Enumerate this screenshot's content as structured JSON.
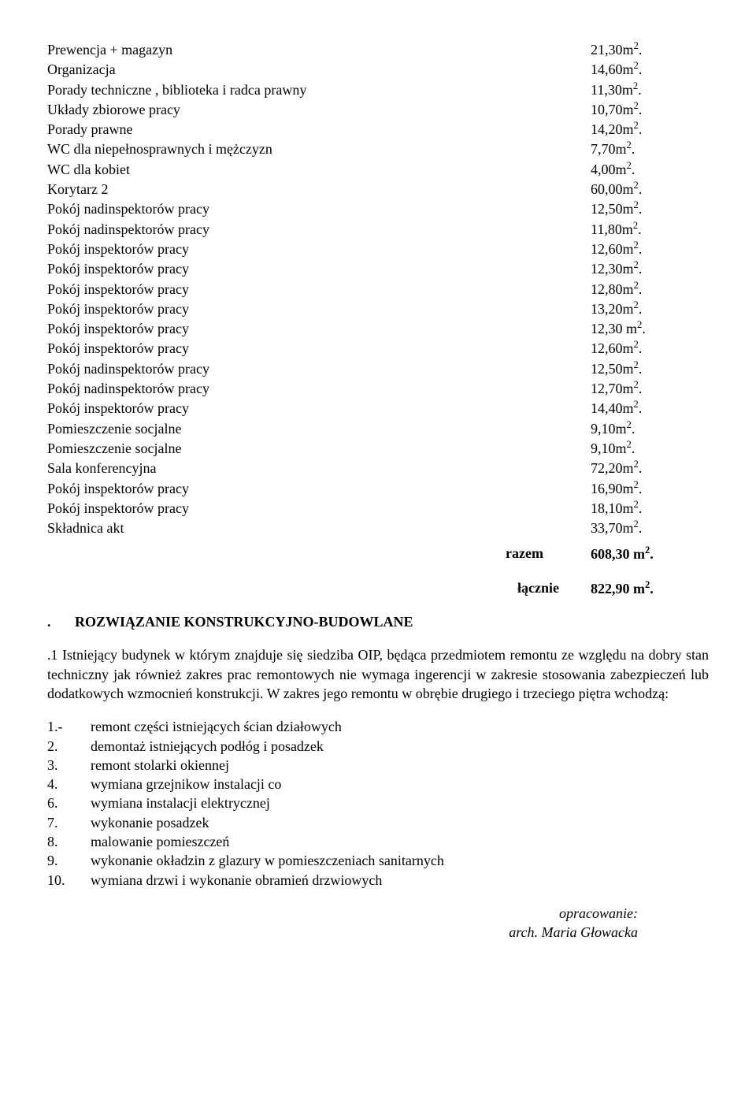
{
  "rooms": [
    {
      "label": "Prewencja + magazyn",
      "value": "21,30m²."
    },
    {
      "label": "Organizacja",
      "value": "14,60m²."
    },
    {
      "label": "Porady techniczne , biblioteka i radca  prawny",
      "value": "11,30m²."
    },
    {
      "label": "Układy zbiorowe pracy",
      "value": "10,70m²."
    },
    {
      "label": "Porady  prawne",
      "value": "14,20m²."
    },
    {
      "label": "WC dla niepełnosprawnych i mężczyzn",
      "value": "7,70m²."
    },
    {
      "label": "WC dla kobiet",
      "value": "4,00m²."
    },
    {
      "label": "Korytarz 2",
      "value": "60,00m²."
    },
    {
      "label": "Pokój  nadinspektorów  pracy",
      "value": "12,50m²."
    },
    {
      "label": "Pokój  nadinspektorów pracy",
      "value": "11,80m²."
    },
    {
      "label": "Pokój inspektorów pracy",
      "value": "12,60m²."
    },
    {
      "label": "Pokój inspektorów pracy",
      "value": "12,30m²."
    },
    {
      "label": "Pokój inspektorów pracy",
      "value": "12,80m²."
    },
    {
      "label": "Pokój inspektorów pracy",
      "value": "13,20m²."
    },
    {
      "label": "Pokój inspektorów pracy",
      "value": "12,30 m²."
    },
    {
      "label": "Pokój inspektorów pracy",
      "value": "12,60m²."
    },
    {
      "label": "Pokój  nadinspektorów pracy",
      "value": "12,50m²."
    },
    {
      "label": "Pokój  nadinspektorów pracy",
      "value": "12,70m²."
    },
    {
      "label": "Pokój inspektorów pracy",
      "value": "14,40m²."
    },
    {
      "label": "Pomieszczenie socjalne",
      "value": "9,10m²."
    },
    {
      "label": "Pomieszczenie socjalne",
      "value": "9,10m²."
    },
    {
      "label": "Sala konferencyjna",
      "value": "72,20m²."
    },
    {
      "label": "Pokój inspektorów pracy",
      "value": "16,90m²."
    },
    {
      "label": "Pokój inspektorów pracy",
      "value": "18,10m²."
    },
    {
      "label": "Składnica akt",
      "value": "33,70m²."
    }
  ],
  "razem": {
    "label": "razem",
    "value": "608,30 m²."
  },
  "lacznie": {
    "label": "łącznie",
    "value": "822,90 m²."
  },
  "section": {
    "num": ".",
    "title": "ROZWIĄZANIE KONSTRUKCYJNO-BUDOWLANE"
  },
  "paragraph": ".1     Istniejący budynek w którym znajduje się siedziba OIP, będąca przedmiotem remontu ze względu na dobry stan techniczny jak również zakres prac remontowych nie wymaga ingerencji w zakresie stosowania zabezpieczeń  lub dodatkowych wzmocnień konstrukcji. W zakres jego remontu w obrębie drugiego i trzeciego piętra wchodzą:",
  "numlist": [
    {
      "num": "1.-",
      "text": "remont  części istniejących ścian działowych"
    },
    {
      "num": "2.",
      "text": "demontaż istniejących podłóg i posadzek"
    },
    {
      "num": "3.",
      "text": "remont stolarki okiennej"
    },
    {
      "num": "4.",
      "text": "wymiana grzejnikow instalacji co"
    },
    {
      "num": "6.",
      "text": "wymiana  instalacji elektrycznej"
    },
    {
      "num": "7.",
      "text": "wykonanie posadzek"
    },
    {
      "num": "8.",
      "text": "malowanie pomieszczeń"
    },
    {
      "num": "9.",
      "text": "wykonanie okładzin z glazury w pomieszczeniach sanitarnych"
    },
    {
      "num": "10.",
      "text": "wymiana drzwi i wykonanie obramień drzwiowych"
    }
  ],
  "signature": {
    "line1": "opracowanie:",
    "line2": "arch. Maria Głowacka"
  }
}
